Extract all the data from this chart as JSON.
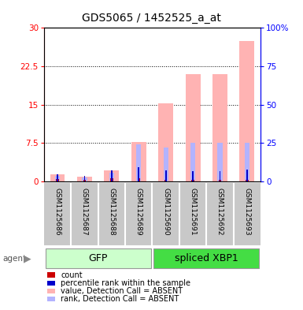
{
  "title": "GDS5065 / 1452525_a_at",
  "samples": [
    "GSM1125686",
    "GSM1125687",
    "GSM1125688",
    "GSM1125689",
    "GSM1125690",
    "GSM1125691",
    "GSM1125692",
    "GSM1125693"
  ],
  "value_absent": [
    1.3,
    0.9,
    2.2,
    7.7,
    15.2,
    21.0,
    21.0,
    27.5
  ],
  "rank_absent_right": [
    3.5,
    2.5,
    5.5,
    24.0,
    22.0,
    25.0,
    25.0,
    25.0
  ],
  "count_red": [
    0.4,
    0.25,
    0.55,
    0.55,
    0.35,
    0.25,
    0.25,
    0.35
  ],
  "rank_blue_right": [
    4.5,
    3.5,
    7.0,
    9.0,
    7.0,
    6.5,
    6.5,
    7.5
  ],
  "ylim_left": [
    0,
    30
  ],
  "ylim_right": [
    0,
    100
  ],
  "yticks_left": [
    0,
    7.5,
    15,
    22.5,
    30
  ],
  "yticks_right": [
    0,
    25,
    50,
    75,
    100
  ],
  "color_value_absent": "#ffb3b3",
  "color_rank_absent": "#b3b3ff",
  "color_count": "#cc0000",
  "color_rank": "#0000cc",
  "background_sample": "#c8c8c8",
  "gfp_light": "#ccffcc",
  "gfp_dark": "#44dd44",
  "legend_items": [
    {
      "color": "#cc0000",
      "label": "count"
    },
    {
      "color": "#0000cc",
      "label": "percentile rank within the sample"
    },
    {
      "color": "#ffb3b3",
      "label": "value, Detection Call = ABSENT"
    },
    {
      "color": "#b3b3ff",
      "label": "rank, Detection Call = ABSENT"
    }
  ]
}
